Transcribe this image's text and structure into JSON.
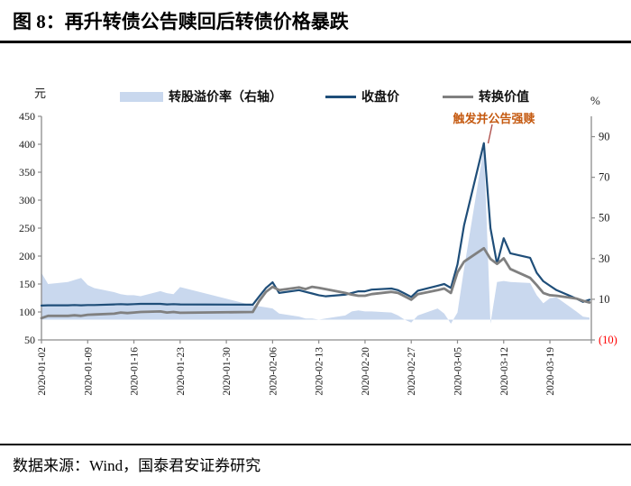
{
  "window": {
    "title": "图 8：再升转债公告赎回后转债价格暴跌",
    "source": "数据来源：Wind，国泰君安证券研究"
  },
  "legend": {
    "items": [
      {
        "label": "转股溢价率（右轴）",
        "swatch": "area",
        "color": "#c9d8ee"
      },
      {
        "label": "收盘价",
        "swatch": "line",
        "color": "#1f4e79"
      },
      {
        "label": "转换价值",
        "swatch": "line",
        "color": "#808080"
      }
    ]
  },
  "annotation": {
    "text": "触发并公告强赎",
    "color": "#c55a11",
    "leader_color": "#b0524e"
  },
  "chart_data": {
    "type": "area+line",
    "title": "再升转债公告赎回后转债价格暴跌",
    "grid": false,
    "legend_position": "top",
    "x": [
      "2020-01-02",
      "2020-01-03",
      "2020-01-06",
      "2020-01-07",
      "2020-01-08",
      "2020-01-09",
      "2020-01-10",
      "2020-01-13",
      "2020-01-14",
      "2020-01-15",
      "2020-01-16",
      "2020-01-17",
      "2020-01-20",
      "2020-01-21",
      "2020-01-22",
      "2020-01-23",
      "2020-02-03",
      "2020-02-04",
      "2020-02-05",
      "2020-02-06",
      "2020-02-07",
      "2020-02-10",
      "2020-02-11",
      "2020-02-12",
      "2020-02-13",
      "2020-02-14",
      "2020-02-17",
      "2020-02-18",
      "2020-02-19",
      "2020-02-20",
      "2020-02-21",
      "2020-02-24",
      "2020-02-25",
      "2020-02-26",
      "2020-02-27",
      "2020-02-28",
      "2020-03-02",
      "2020-03-03",
      "2020-03-04",
      "2020-03-05",
      "2020-03-06",
      "2020-03-09",
      "2020-03-10",
      "2020-03-11",
      "2020-03-12",
      "2020-03-13",
      "2020-03-16",
      "2020-03-17",
      "2020-03-18",
      "2020-03-19",
      "2020-03-20",
      "2020-03-23",
      "2020-03-24",
      "2020-03-25"
    ],
    "series": [
      {
        "name": "转股溢价率（右轴）",
        "type": "area",
        "axis": "right",
        "color": "#c9d8ee",
        "values": [
          23,
          17.5,
          18.5,
          19.5,
          20.5,
          17,
          15.5,
          13.5,
          12.5,
          12,
          12,
          11.5,
          14,
          13,
          12.5,
          16,
          7,
          6.5,
          6,
          5.5,
          3,
          1.5,
          0.5,
          0.5,
          0,
          0.5,
          2,
          4,
          4.5,
          4,
          4,
          3.5,
          2,
          0,
          -1.5,
          2,
          5.5,
          3,
          -2,
          3.5,
          25,
          85,
          -2,
          18.5,
          19,
          18.5,
          18,
          12,
          8,
          10.5,
          11,
          4,
          1.5,
          1
        ]
      },
      {
        "name": "收盘价",
        "type": "line",
        "axis": "left",
        "color": "#1f4e79",
        "values": [
          111.5,
          112,
          112,
          112.5,
          112,
          112.5,
          112.5,
          113.5,
          114,
          113.5,
          114,
          114.5,
          114.5,
          113.5,
          114,
          113.5,
          113,
          128,
          143,
          153,
          134,
          139,
          136,
          133,
          130,
          128,
          131,
          134,
          137,
          137,
          140,
          142,
          139,
          133,
          127,
          138,
          147,
          150,
          143,
          185,
          255,
          402,
          250,
          186,
          232,
          205,
          197,
          170,
          155,
          147,
          139,
          124,
          118,
          122
        ]
      },
      {
        "name": "转换价值",
        "type": "line",
        "axis": "left",
        "color": "#808080",
        "values": [
          89,
          93,
          93,
          94,
          93,
          95,
          95.5,
          97,
          99,
          98,
          99,
          100,
          101,
          99,
          100,
          98.5,
          100,
          120,
          136,
          145,
          139,
          144,
          141,
          145,
          143,
          141,
          134,
          131,
          129,
          129,
          132,
          136,
          134,
          128,
          122,
          132,
          139,
          142,
          134,
          171,
          190,
          214,
          195,
          186,
          196,
          177,
          161,
          148,
          134,
          130,
          129,
          124,
          120,
          117
        ]
      }
    ],
    "left_axis": {
      "unit": "元",
      "min": 50,
      "max": 450,
      "ticks": [
        450,
        400,
        350,
        300,
        250,
        200,
        150,
        100,
        50
      ]
    },
    "right_axis": {
      "unit": "%",
      "min": -10,
      "max": 100,
      "ticks": [
        {
          "label": "90",
          "value": 90
        },
        {
          "label": "70",
          "value": 70
        },
        {
          "label": "50",
          "value": 50
        },
        {
          "label": "30",
          "value": 30
        },
        {
          "label": "10",
          "value": 10
        },
        {
          "label": "(10)",
          "value": -10,
          "color": "#ff0000"
        }
      ]
    },
    "x_tick_labels": [
      "2020-01-02",
      "2020-01-09",
      "2020-01-16",
      "2020-01-23",
      "2020-01-30",
      "2020-02-06",
      "2020-02-13",
      "2020-02-20",
      "2020-02-27",
      "2020-03-05",
      "2020-03-12",
      "2020-03-19"
    ],
    "axis_color": "#8c8c8c",
    "tick_text_color": "#1a1a1a"
  }
}
